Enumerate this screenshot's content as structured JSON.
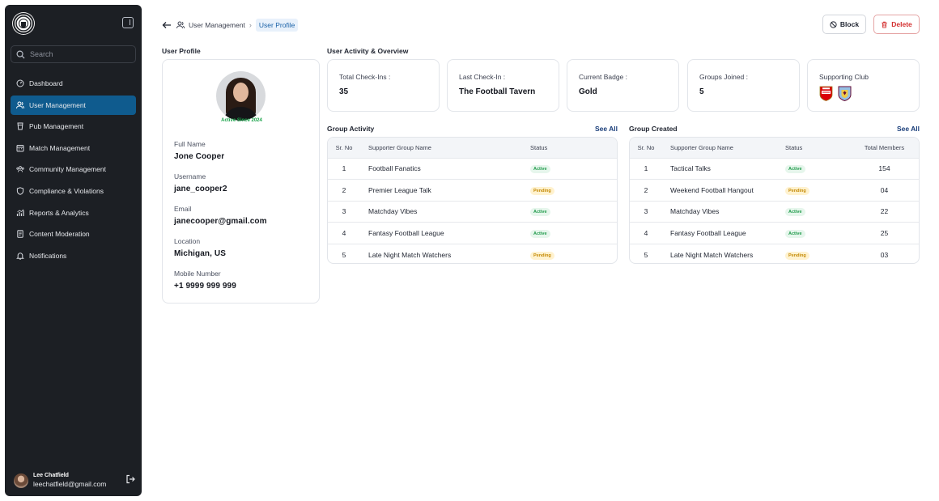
{
  "sidebar": {
    "search_placeholder": "Search",
    "items": [
      {
        "label": "Dashboard",
        "icon": "dashboard-icon",
        "active": false
      },
      {
        "label": "User Management",
        "icon": "users-icon",
        "active": true
      },
      {
        "label": "Pub Management",
        "icon": "glass-icon",
        "active": false
      },
      {
        "label": "Match Management",
        "icon": "calendar-icon",
        "active": false
      },
      {
        "label": "Community Management",
        "icon": "community-icon",
        "active": false
      },
      {
        "label": "Compliance & Violations",
        "icon": "shield-icon",
        "active": false
      },
      {
        "label": "Reports & Analytics",
        "icon": "chart-icon",
        "active": false
      },
      {
        "label": "Content Moderation",
        "icon": "document-icon",
        "active": false
      },
      {
        "label": "Notifications",
        "icon": "bell-icon",
        "active": false
      }
    ],
    "user": {
      "name": "Lee Chatfield",
      "email": "leechatfield@gmail.com"
    }
  },
  "header": {
    "breadcrumb": [
      "User Management",
      "User Profile"
    ],
    "block_label": "Block",
    "delete_label": "Delete"
  },
  "profile": {
    "section_title": "User Profile",
    "active_since": "Active Since 2024",
    "fields": [
      {
        "label": "Full Name",
        "value": "Jone Cooper"
      },
      {
        "label": "Username",
        "value": "jane_cooper2"
      },
      {
        "label": "Email",
        "value": "janecooper@gmail.com"
      },
      {
        "label": "Location",
        "value": "Michigan, US"
      },
      {
        "label": "Mobile Number",
        "value": "+1 9999 999 999"
      }
    ]
  },
  "overview": {
    "section_title": "User Activity & Overview",
    "stats": [
      {
        "label": "Total Check-Ins :",
        "value": "35"
      },
      {
        "label": "Last Check-In :",
        "value": "The Football Tavern"
      },
      {
        "label": "Current Badge :",
        "value": "Gold"
      },
      {
        "label": "Groups Joined :",
        "value": "5"
      }
    ],
    "supporting_club_label": "Supporting Club"
  },
  "group_activity": {
    "title": "Group Activity",
    "see_all": "See All",
    "headers": [
      "Sr. No",
      "Supporter Group Name",
      "Status"
    ],
    "rows": [
      {
        "no": "1",
        "name": "Football Fanatics",
        "status": "Active"
      },
      {
        "no": "2",
        "name": "Premier League Talk",
        "status": "Pending"
      },
      {
        "no": "3",
        "name": "Matchday Vibes",
        "status": "Active"
      },
      {
        "no": "4",
        "name": "Fantasy Football League",
        "status": "Active"
      },
      {
        "no": "5",
        "name": "Late Night Match Watchers",
        "status": "Pending"
      }
    ]
  },
  "group_created": {
    "title": "Group Created",
    "see_all": "See All",
    "headers": [
      "Sr. No",
      "Supporter Group Name",
      "Status",
      "Total Members"
    ],
    "rows": [
      {
        "no": "1",
        "name": "Tactical Talks",
        "status": "Active",
        "members": "154"
      },
      {
        "no": "2",
        "name": "Weekend Football Hangout",
        "status": "Pending",
        "members": "04"
      },
      {
        "no": "3",
        "name": "Matchday Vibes",
        "status": "Active",
        "members": "22"
      },
      {
        "no": "4",
        "name": "Fantasy Football League",
        "status": "Active",
        "members": "25"
      },
      {
        "no": "5",
        "name": "Late Night Match Watchers",
        "status": "Pending",
        "members": "03"
      }
    ]
  },
  "colors": {
    "sidebar_bg": "#1c1f24",
    "active_nav": "#0f5b8e",
    "active_status": "#1f9a4a",
    "pending_status": "#c48a06",
    "delete": "#d32f2f"
  }
}
